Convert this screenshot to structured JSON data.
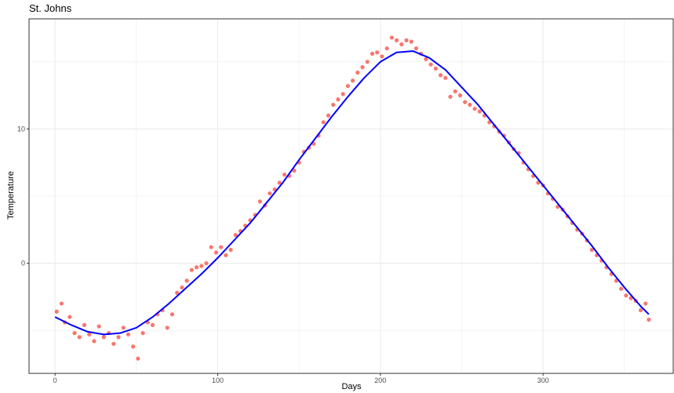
{
  "chart_data": {
    "type": "scatter",
    "title": "St. Johns",
    "xlabel": "Days",
    "ylabel": "Temperature",
    "xlim": [
      -16,
      380
    ],
    "ylim": [
      -8.2,
      18.2
    ],
    "x_ticks": [
      0,
      100,
      200,
      300
    ],
    "x_minor_ticks": [
      50,
      150,
      250,
      350
    ],
    "y_ticks": [
      0,
      10
    ],
    "y_minor_ticks": [
      -5,
      5,
      15
    ],
    "grid": true,
    "legend": "none",
    "colors": {
      "points": "#F8766D",
      "smooth": "#0000FF",
      "grid": "#EBEBEB",
      "panel_border": "#333333"
    },
    "series": [
      {
        "kind": "points",
        "x": [
          1,
          4,
          6,
          9,
          12,
          15,
          18,
          21,
          24,
          27,
          30,
          33,
          36,
          39,
          42,
          45,
          48,
          51,
          54,
          57,
          60,
          63,
          66,
          69,
          72,
          75,
          78,
          81,
          84,
          87,
          90,
          93,
          96,
          99,
          102,
          105,
          108,
          111,
          114,
          117,
          120,
          123,
          126,
          129,
          132,
          135,
          138,
          141,
          144,
          147,
          150,
          153,
          156,
          159,
          162,
          165,
          168,
          171,
          174,
          177,
          180,
          183,
          186,
          189,
          192,
          195,
          198,
          201,
          204,
          207,
          210,
          213,
          216,
          219,
          222,
          225,
          228,
          231,
          234,
          237,
          240,
          243,
          246,
          249,
          252,
          255,
          258,
          261,
          264,
          267,
          270,
          273,
          276,
          279,
          282,
          285,
          288,
          291,
          294,
          297,
          300,
          303,
          306,
          309,
          312,
          315,
          318,
          321,
          324,
          327,
          330,
          333,
          336,
          339,
          342,
          345,
          348,
          351,
          354,
          357,
          360,
          363,
          365
        ],
        "y": [
          -3.6,
          -3.0,
          -4.4,
          -4.0,
          -5.2,
          -5.5,
          -4.6,
          -5.3,
          -5.8,
          -4.7,
          -5.5,
          -5.2,
          -6.0,
          -5.5,
          -4.8,
          -5.3,
          -6.2,
          -7.1,
          -5.2,
          -4.4,
          -4.6,
          -3.8,
          -3.5,
          -4.8,
          -3.8,
          -2.2,
          -1.8,
          -1.3,
          -0.5,
          -0.3,
          -0.2,
          0.0,
          1.2,
          0.8,
          1.2,
          0.6,
          1.0,
          2.1,
          2.4,
          2.8,
          3.2,
          3.6,
          4.6,
          4.3,
          5.2,
          5.5,
          6.0,
          6.6,
          6.5,
          6.9,
          7.5,
          8.3,
          8.6,
          8.9,
          9.5,
          10.5,
          11.0,
          11.8,
          12.2,
          12.6,
          13.2,
          13.6,
          14.2,
          14.6,
          15.0,
          15.6,
          15.7,
          15.4,
          16.0,
          16.8,
          16.6,
          16.3,
          16.6,
          16.5,
          16.0,
          15.6,
          15.2,
          14.8,
          14.5,
          14.0,
          13.8,
          12.4,
          12.8,
          12.5,
          12.0,
          11.8,
          11.5,
          11.3,
          11.0,
          10.5,
          10.2,
          9.8,
          9.5,
          9.0,
          8.5,
          8.2,
          7.5,
          7.0,
          6.5,
          6.0,
          5.8,
          5.2,
          4.8,
          4.2,
          4.0,
          3.5,
          3.0,
          2.5,
          2.2,
          1.7,
          1.0,
          0.6,
          0.2,
          -0.3,
          -0.8,
          -1.3,
          -1.9,
          -2.4,
          -2.6,
          -2.8,
          -3.5,
          -3.0,
          -4.2
        ]
      },
      {
        "kind": "smooth",
        "x": [
          0,
          10,
          20,
          30,
          40,
          50,
          60,
          70,
          80,
          90,
          100,
          110,
          120,
          130,
          140,
          150,
          160,
          170,
          180,
          190,
          200,
          210,
          220,
          230,
          240,
          250,
          260,
          270,
          280,
          290,
          300,
          310,
          320,
          330,
          340,
          350,
          360,
          365
        ],
        "y": [
          -4.0,
          -4.6,
          -5.1,
          -5.3,
          -5.2,
          -4.8,
          -4.0,
          -3.0,
          -1.9,
          -0.8,
          0.4,
          1.7,
          3.0,
          4.5,
          6.0,
          7.7,
          9.3,
          10.9,
          12.4,
          13.8,
          15.0,
          15.7,
          15.8,
          15.3,
          14.4,
          13.1,
          11.8,
          10.3,
          8.8,
          7.3,
          5.8,
          4.3,
          2.8,
          1.3,
          -0.3,
          -1.8,
          -3.2,
          -3.8
        ]
      }
    ]
  }
}
